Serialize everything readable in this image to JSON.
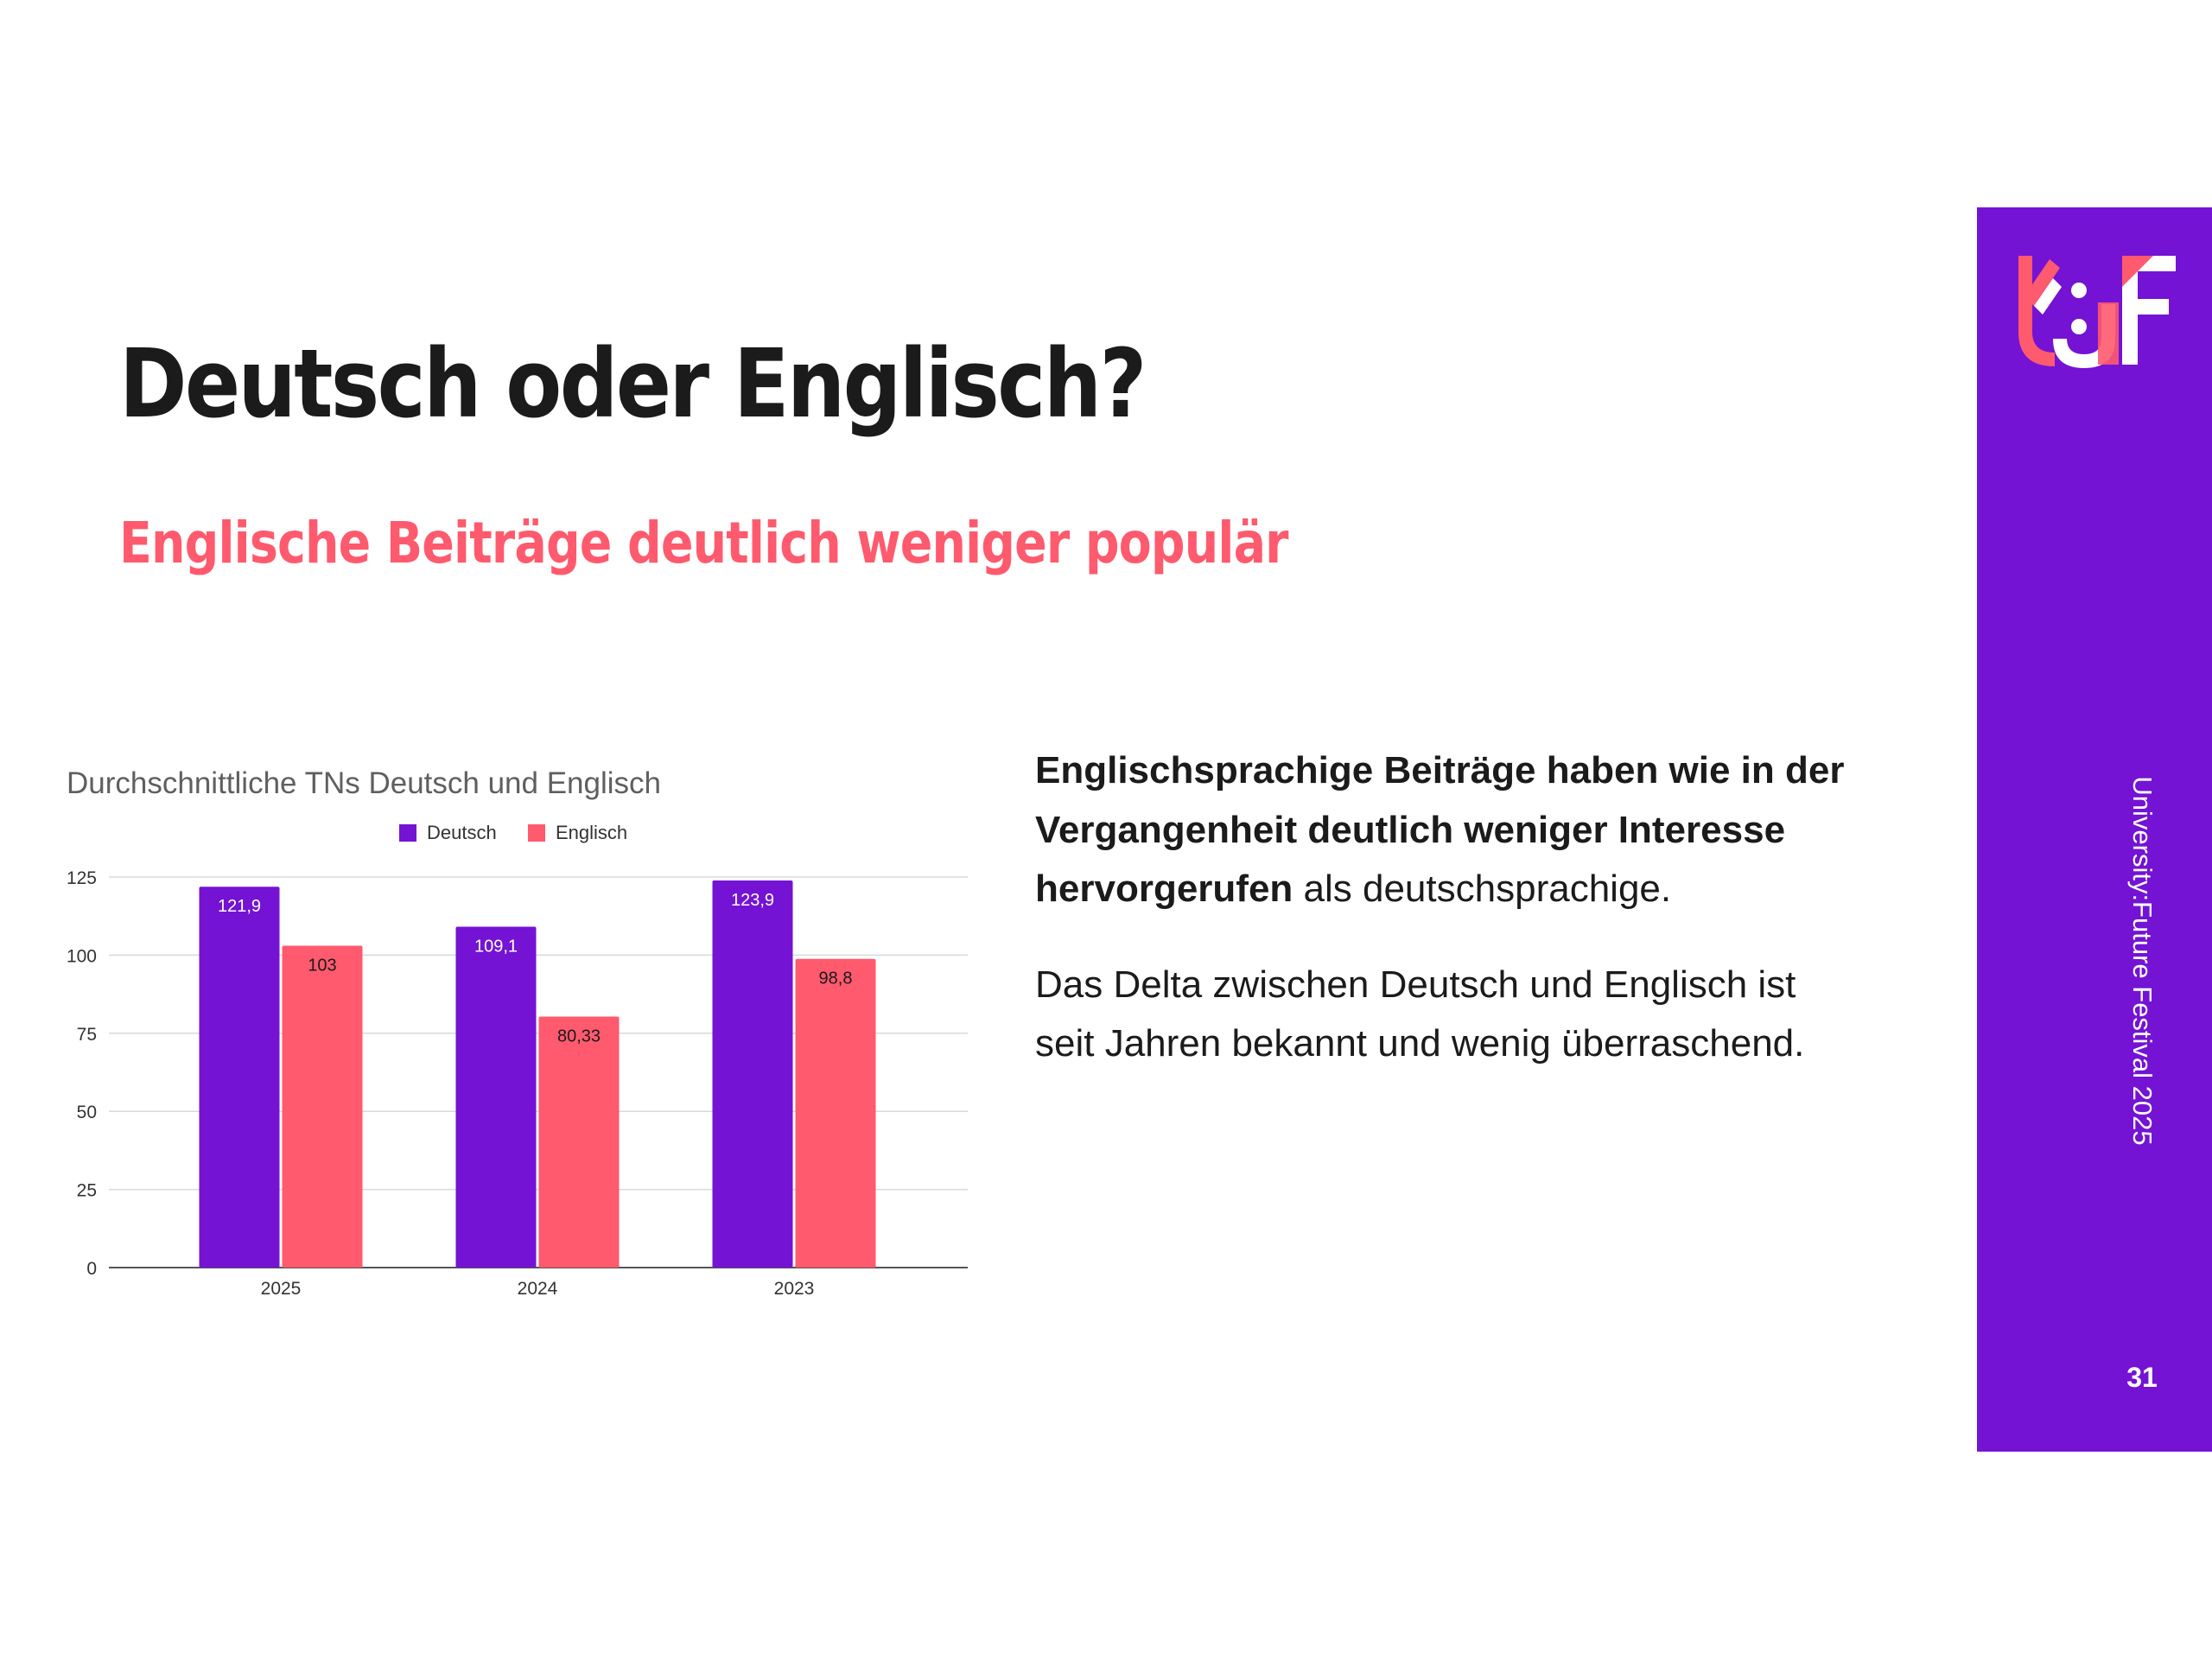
{
  "slide": {
    "title": "Deutsch oder Englisch?",
    "subtitle": "Englische Beiträge deutlich weniger populär"
  },
  "body": {
    "para1_bold": "Englischsprachige Beiträge haben wie in der Vergangenheit deutlich weniger Interesse hervorgerufen",
    "para1_rest": " als deutschsprachige.",
    "para2": "Das Delta zwischen Deutsch und Englisch ist seit Jahren bekannt und wenig überraschend."
  },
  "sidebar": {
    "vertical_label": "University:Future Festival 2025",
    "page_number": "31",
    "color": "#7413d3"
  },
  "chart_data": {
    "type": "bar",
    "title": "Durchschnittliche TNs Deutsch und Englisch",
    "categories": [
      "2025",
      "2024",
      "2023"
    ],
    "series": [
      {
        "name": "Deutsch",
        "color": "#7413d3",
        "values": [
          121.9,
          109.1,
          123.9
        ],
        "labels": [
          "121,9",
          "109,1",
          "123,9"
        ]
      },
      {
        "name": "Englisch",
        "color": "#ff5a6e",
        "values": [
          103,
          80.33,
          98.8
        ],
        "labels": [
          "103",
          "80,33",
          "98,8"
        ]
      }
    ],
    "ylim": [
      0,
      125
    ],
    "yticks": [
      "0",
      "25",
      "50",
      "75",
      "100",
      "125"
    ],
    "ytick_values": [
      0,
      25,
      50,
      75,
      100,
      125
    ],
    "grid": true,
    "legend": "top-center"
  }
}
